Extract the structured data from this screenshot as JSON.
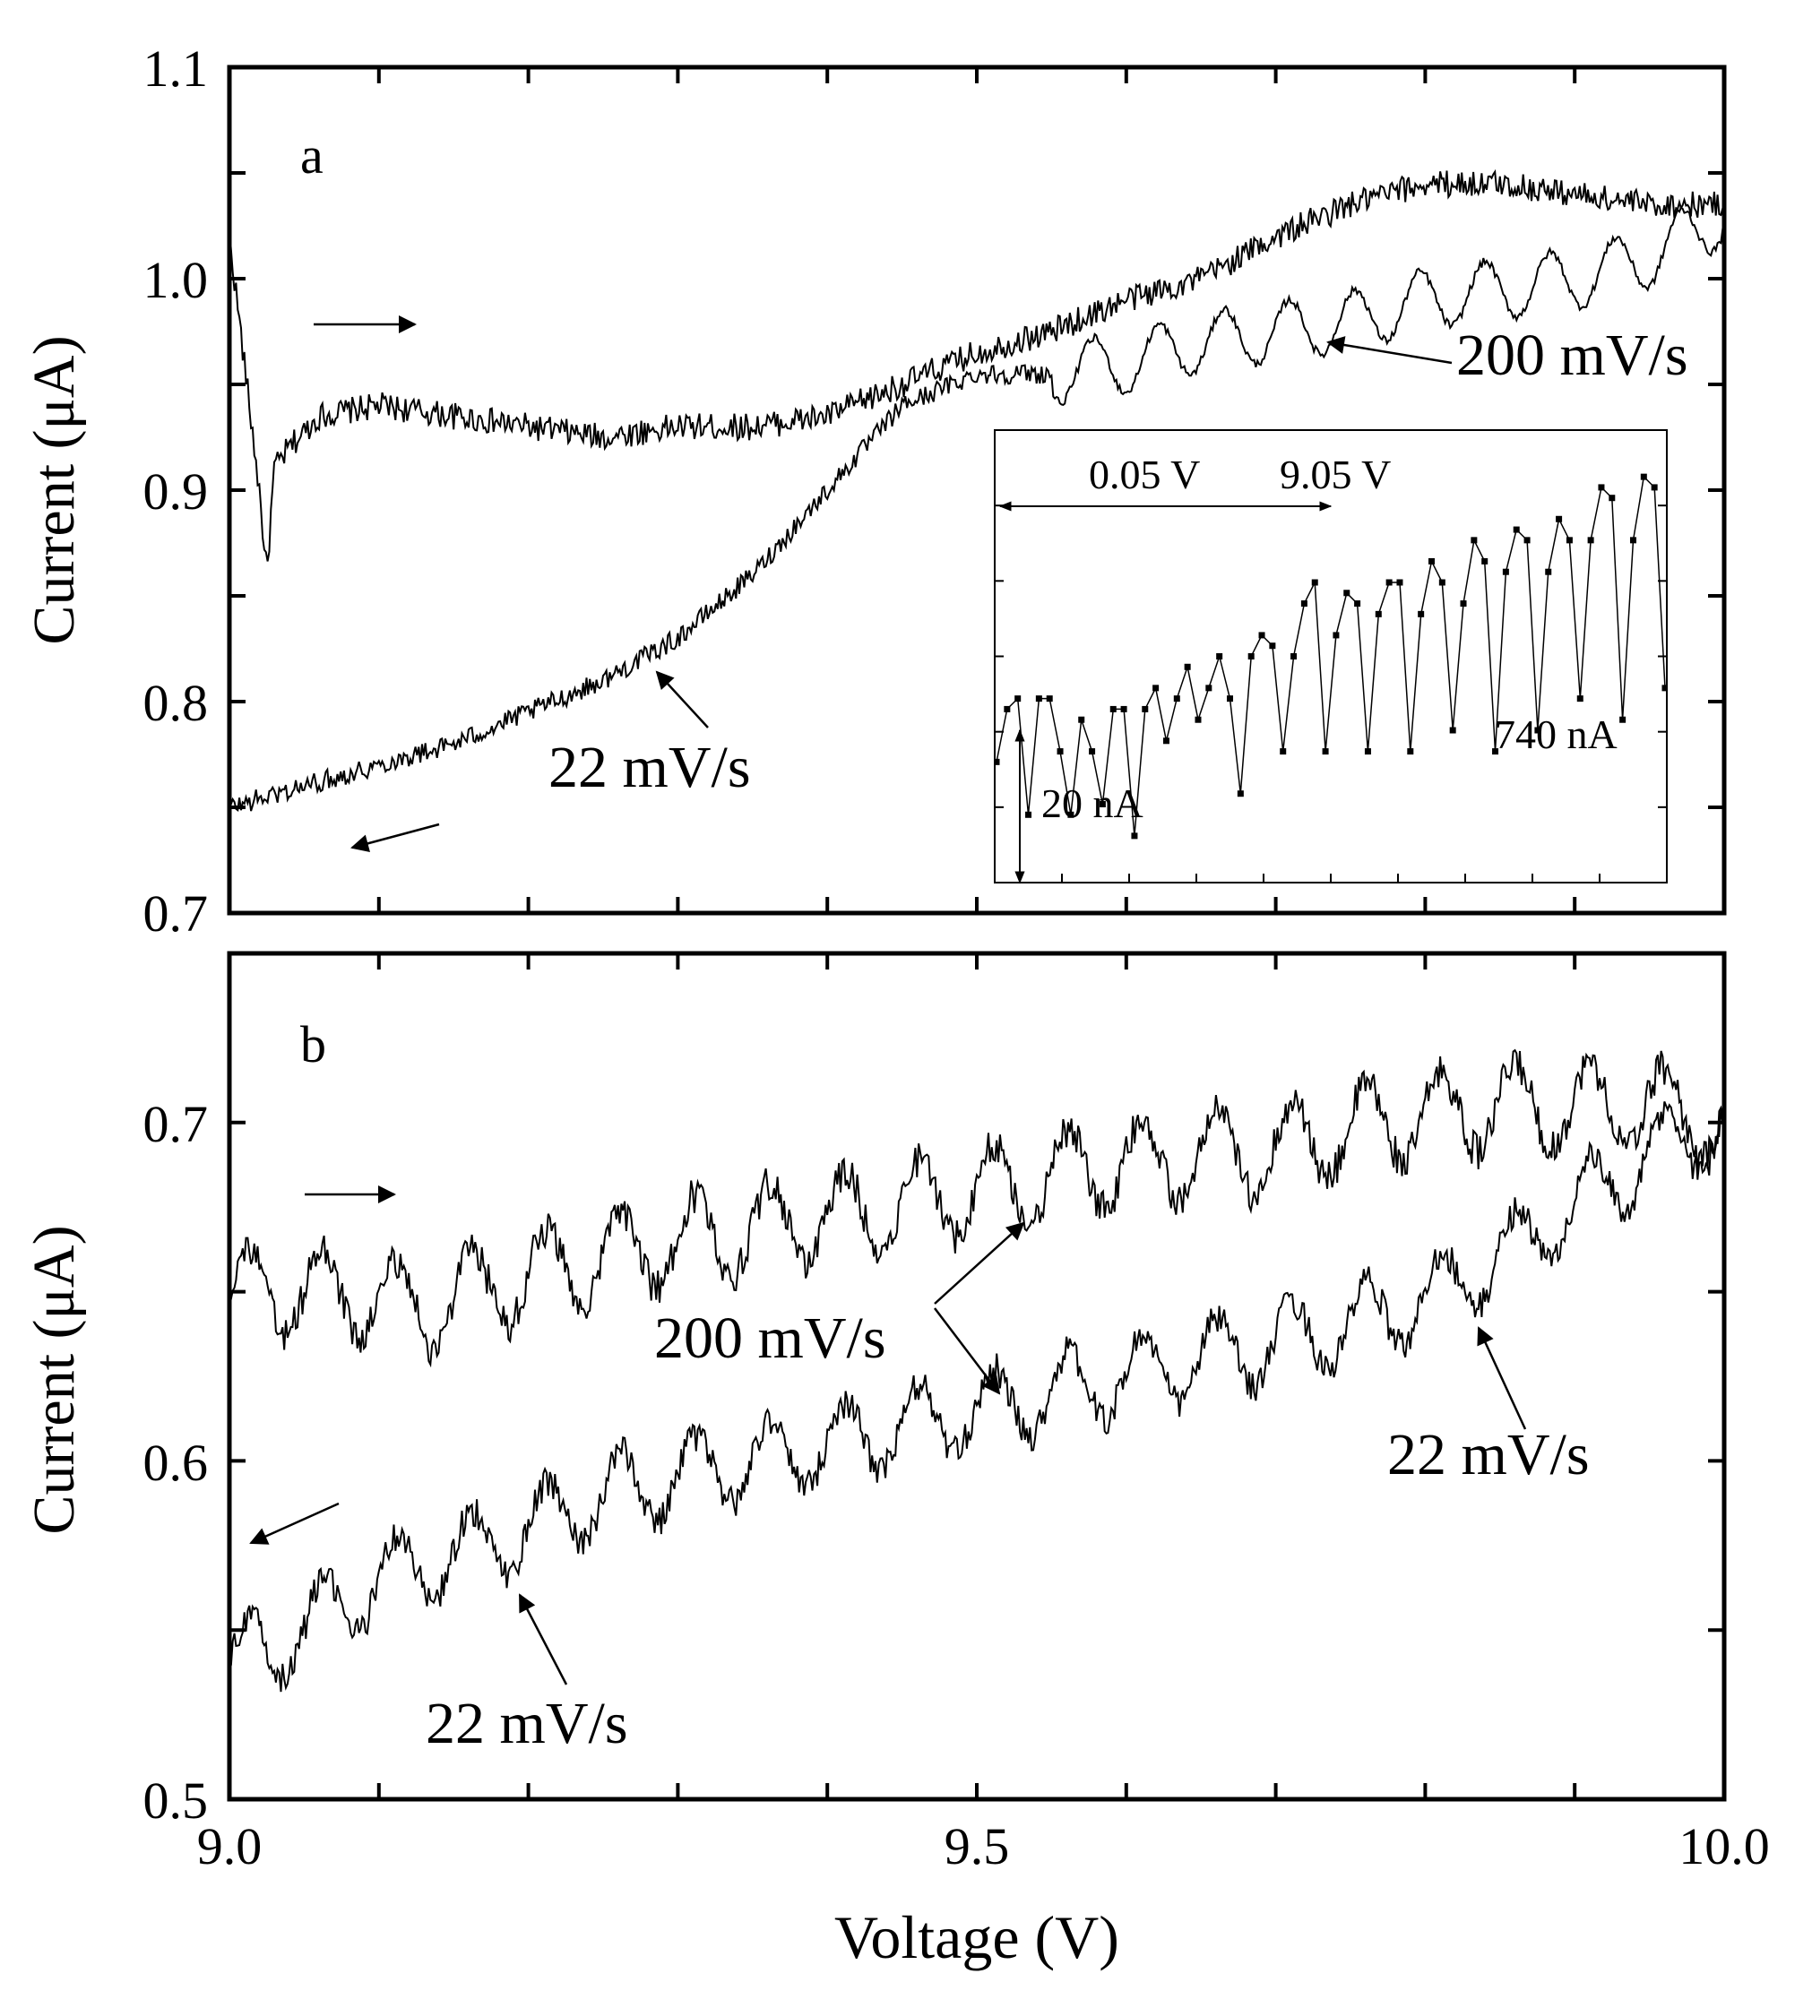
{
  "chart_data": [
    {
      "panel": "a",
      "type": "line",
      "panel_label": "a",
      "xlim": [
        9.0,
        10.0
      ],
      "ylim": [
        0.7,
        1.1
      ],
      "ylabel": "Current (μA)",
      "yticks": [
        0.7,
        0.8,
        0.9,
        1.0,
        1.1
      ],
      "ytick_labels": [
        "0.7",
        "0.8",
        "0.9",
        "1.0",
        "1.1"
      ],
      "xticks": [
        9.0,
        9.1,
        9.2,
        9.3,
        9.4,
        9.5,
        9.6,
        9.7,
        9.8,
        9.9,
        10.0
      ],
      "series": [
        {
          "name": "forward",
          "direction": "increasing voltage",
          "x": [
            9.0,
            9.02,
            9.025,
            9.03,
            9.04,
            9.06,
            9.1,
            9.2,
            9.25,
            9.3,
            9.35,
            9.4,
            9.45,
            9.5,
            9.55,
            9.6,
            9.65,
            9.7,
            9.75,
            9.8,
            9.85,
            9.9,
            9.95,
            10.0
          ],
          "y": [
            1.02,
            0.9,
            0.86,
            0.91,
            0.92,
            0.935,
            0.94,
            0.93,
            0.925,
            0.93,
            0.93,
            0.935,
            0.95,
            0.965,
            0.975,
            0.99,
            1.0,
            1.02,
            1.035,
            1.045,
            1.045,
            1.04,
            1.035,
            1.035
          ]
        },
        {
          "name": "reverse",
          "direction": "decreasing voltage",
          "x": [
            10.0,
            9.95,
            9.9,
            9.85,
            9.8,
            9.75,
            9.7,
            9.65,
            9.6,
            9.55,
            9.5,
            9.45,
            9.4,
            9.35,
            9.3,
            9.25,
            9.2,
            9.15,
            9.1,
            9.05,
            9.0
          ],
          "y": [
            1.03,
            1.01,
            1.0,
            0.995,
            0.99,
            0.98,
            0.975,
            0.97,
            0.96,
            0.955,
            0.955,
            0.94,
            0.9,
            0.86,
            0.83,
            0.81,
            0.795,
            0.78,
            0.77,
            0.76,
            0.75
          ]
        }
      ],
      "annotations": [
        {
          "text": "200 mV/s"
        },
        {
          "text": "22 mV/s"
        }
      ],
      "inset": {
        "labels": [
          "0.05 V",
          "9.05 V",
          "20 nA",
          "740 nA"
        ],
        "values": [
          0.09,
          0.14,
          0.15,
          0.04,
          0.15,
          0.15,
          0.1,
          0.04,
          0.13,
          0.1,
          0.05,
          0.14,
          0.14,
          0.02,
          0.14,
          0.16,
          0.11,
          0.15,
          0.18,
          0.13,
          0.16,
          0.19,
          0.15,
          0.06,
          0.19,
          0.21,
          0.2,
          0.1,
          0.19,
          0.24,
          0.26,
          0.1,
          0.21,
          0.25,
          0.24,
          0.1,
          0.23,
          0.26,
          0.26,
          0.1,
          0.23,
          0.28,
          0.26,
          0.12,
          0.24,
          0.3,
          0.28,
          0.1,
          0.27,
          0.31,
          0.3,
          0.12,
          0.27,
          0.32,
          0.3,
          0.15,
          0.3,
          0.35,
          0.34,
          0.13,
          0.3,
          0.36,
          0.35,
          0.16
        ]
      }
    },
    {
      "panel": "b",
      "type": "line",
      "panel_label": "b",
      "xlim": [
        9.0,
        10.0
      ],
      "ylim": [
        0.5,
        0.75
      ],
      "xlabel": "Voltage (V)",
      "ylabel": "Current (μA)",
      "yticks": [
        0.5,
        0.6,
        0.7
      ],
      "ytick_labels": [
        "0.5",
        "0.6",
        "0.7"
      ],
      "xticks": [
        9.0,
        9.1,
        9.2,
        9.3,
        9.4,
        9.5,
        9.6,
        9.7,
        9.8,
        9.9,
        10.0
      ],
      "xtick_labels": [
        "9.0",
        "9.5",
        "10.0"
      ],
      "series": [
        {
          "name": "forward",
          "direction": "increasing voltage",
          "x": [
            9.0,
            9.05,
            9.1,
            9.13,
            9.2,
            9.3,
            9.4,
            9.5,
            9.6,
            9.7,
            9.77,
            9.85,
            9.9,
            9.95,
            10.0
          ],
          "y": [
            0.65,
            0.65,
            0.648,
            0.645,
            0.655,
            0.665,
            0.672,
            0.68,
            0.688,
            0.692,
            0.7,
            0.705,
            0.705,
            0.705,
            0.7
          ],
          "oscillation_amplitude": 0.018
        },
        {
          "name": "reverse",
          "direction": "decreasing voltage",
          "x": [
            10.0,
            9.95,
            9.9,
            9.85,
            9.8,
            9.75,
            9.7,
            9.6,
            9.5,
            9.4,
            9.3,
            9.25,
            9.2,
            9.15,
            9.1,
            9.05,
            9.0
          ],
          "y": [
            0.7,
            0.69,
            0.675,
            0.66,
            0.648,
            0.64,
            0.635,
            0.625,
            0.615,
            0.605,
            0.595,
            0.59,
            0.58,
            0.572,
            0.565,
            0.55,
            0.54
          ],
          "oscillation_amplitude": 0.016
        }
      ],
      "annotations": [
        {
          "text": "200 mV/s"
        },
        {
          "text": "22 mV/s"
        },
        {
          "text": "22 mV/s"
        }
      ]
    }
  ]
}
